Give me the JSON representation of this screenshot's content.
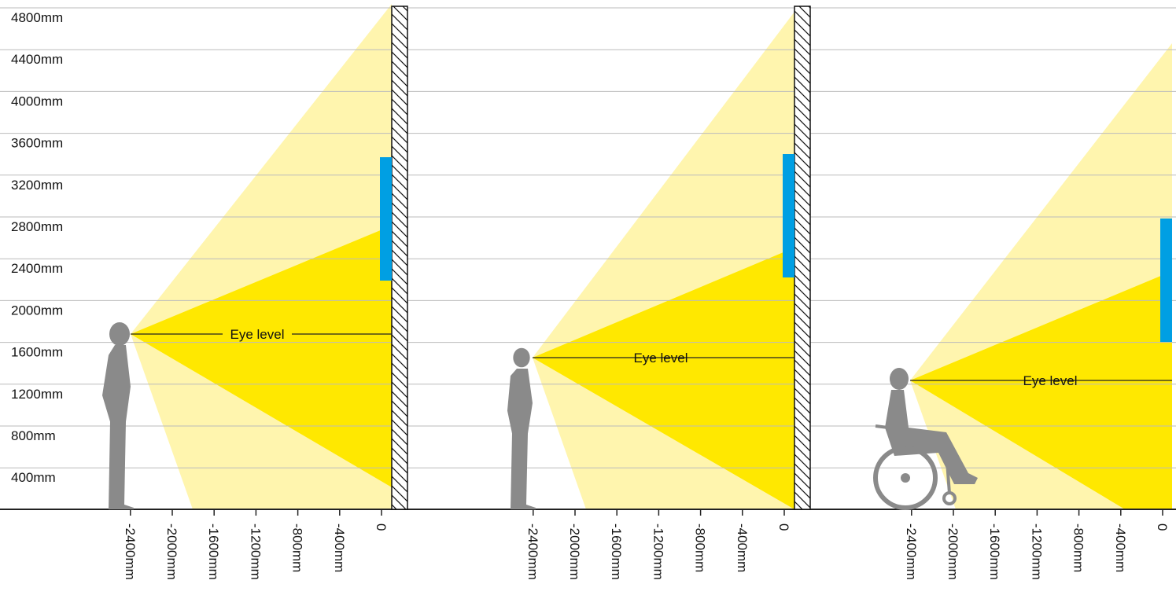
{
  "y_axis": {
    "labels": [
      "4800mm",
      "4400mm",
      "4000mm",
      "3600mm",
      "3200mm",
      "2800mm",
      "2400mm",
      "2000mm",
      "1600mm",
      "1200mm",
      "800mm",
      "400mm"
    ]
  },
  "panels": [
    {
      "x_labels": [
        "-2400mm",
        "-2000mm",
        "-1600mm",
        "-1200mm",
        "-800mm",
        "-400mm",
        "0"
      ],
      "eye_level_label": "Eye level"
    },
    {
      "x_labels": [
        "-2400mm",
        "-2000mm",
        "-1600mm",
        "-1200mm",
        "-800mm",
        "-400mm",
        "0"
      ],
      "eye_level_label": "Eye level"
    },
    {
      "x_labels": [
        "-2400mm",
        "-2000mm",
        "-1600mm",
        "-1200mm",
        "-800mm",
        "-400mm",
        "0"
      ],
      "eye_level_label": "Eye level"
    }
  ]
}
